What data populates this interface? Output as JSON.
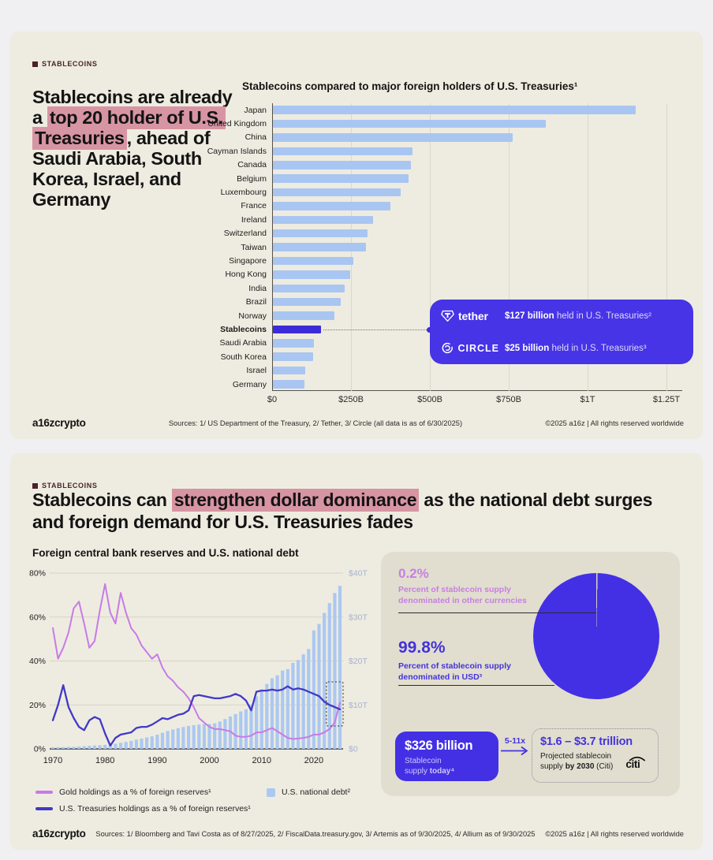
{
  "slide1": {
    "tag": "STABLECOINS",
    "headline": {
      "pre": "Stablecoins are already a ",
      "mark": "top 20 holder of U.S. Treasuries",
      "post": ", ahead of Saudi Arabia, South Korea, Israel, and Germany"
    },
    "callout": {
      "tether_name": "tether",
      "tether_value": "$127 billion",
      "tether_rest": " held in U.S. Treasuries²",
      "circle_name": "CIRCLE",
      "circle_value": "$25 billion",
      "circle_rest": " held in U.S. Treasuries³"
    },
    "footer": {
      "logo": "a16zcrypto",
      "sources": "Sources: 1/ US Department of the Treasury, 2/ Tether, 3/ Circle (all data is as of 6/30/2025)",
      "copyright": "©2025 a16z | All rights reserved worldwide"
    }
  },
  "slide2": {
    "tag": "STABLECOINS",
    "headline": {
      "pre": "Stablecoins can ",
      "mark": "strengthen dollar dominance",
      "post": " as the national debt surges and foreign demand for U.S. Treasuries fades"
    },
    "subtitle": "Foreign central bank reserves and U.S. national debt",
    "pie_panel": {
      "other_pct": "0.2%",
      "other_label": "Percent of stablecoin supply denominated in other currencies",
      "usd_pct": "99.8%",
      "usd_label": "Percent of stablecoin supply denominated in USD³"
    },
    "supply_box": {
      "value": "$326 billion",
      "label_line1": "Stablecoin",
      "label_line2_pre": "supply ",
      "label_line2_bold": "today⁴"
    },
    "arrow_label": "5-11x",
    "projection_box": {
      "value": "$1.6 – $3.7 trillion",
      "sub_pre": "Projected stablecoin supply ",
      "sub_bold": "by 2030",
      "sub_post": " (Citi)",
      "brand": "citi"
    },
    "footer": {
      "logo": "a16zcrypto",
      "sources": "Sources: 1/ Bloomberg and Tavi Costa as of 8/27/2025, 2/ FiscalData.treasury.gov, 3/ Artemis as of 9/30/2025, 4/ Allium as of 9/30/2025",
      "copyright": "©2025 a16z | All rights reserved worldwide"
    }
  },
  "chart_data": [
    {
      "type": "bar",
      "orientation": "horizontal",
      "title": "Stablecoins compared to major foreign holders of U.S. Treasuries¹",
      "unit": "billions of USD",
      "categories": [
        "Japan",
        "United Kingdom",
        "China",
        "Cayman Islands",
        "Canada",
        "Belgium",
        "Luxembourg",
        "France",
        "Ireland",
        "Switzerland",
        "Taiwan",
        "Singapore",
        "Hong Kong",
        "India",
        "Brazil",
        "Norway",
        "Stablecoins",
        "Saudi Arabia",
        "South Korea",
        "Israel",
        "Germany"
      ],
      "values": [
        1150,
        865,
        760,
        443,
        438,
        430,
        405,
        373,
        317,
        300,
        295,
        256,
        245,
        227,
        215,
        195,
        152,
        130,
        127,
        102,
        100
      ],
      "highlight_category": "Stablecoins",
      "xtick_labels": [
        "$0",
        "$250B",
        "$500B",
        "$750B",
        "$1T",
        "$1.25T"
      ],
      "xtick_values": [
        0,
        250,
        500,
        750,
        1000,
        1250
      ],
      "xlim": [
        0,
        1300
      ],
      "bar_color": "#a9c6f2",
      "highlight_color": "#3c2bd9",
      "annotations": [
        "tether — $127 billion held in U.S. Treasuries²",
        "CIRCLE — $25 billion held in U.S. Treasuries³"
      ]
    },
    {
      "type": "line+bar",
      "title": "Foreign central bank reserves and U.S. national debt",
      "x": [
        1970,
        1971,
        1972,
        1973,
        1974,
        1975,
        1976,
        1977,
        1978,
        1979,
        1980,
        1981,
        1982,
        1983,
        1984,
        1985,
        1986,
        1987,
        1988,
        1989,
        1990,
        1991,
        1992,
        1993,
        1994,
        1995,
        1996,
        1997,
        1998,
        1999,
        2000,
        2001,
        2002,
        2003,
        2004,
        2005,
        2006,
        2007,
        2008,
        2009,
        2010,
        2011,
        2012,
        2013,
        2014,
        2015,
        2016,
        2017,
        2018,
        2019,
        2020,
        2021,
        2022,
        2023,
        2024,
        2025
      ],
      "series": [
        {
          "name": "Gold holdings as a % of foreign reserves¹",
          "axis": "left",
          "color": "#c87ae8",
          "kind": "line",
          "values": [
            55,
            41,
            46,
            53,
            64,
            67,
            57,
            46,
            49,
            63,
            75,
            62,
            57,
            71,
            62,
            55,
            52,
            47,
            44,
            41,
            43,
            37,
            33,
            31,
            28,
            26,
            23,
            19,
            14,
            12,
            10,
            9,
            9,
            8.5,
            8,
            6,
            5.5,
            5.5,
            6,
            7.5,
            7.5,
            8.5,
            9.5,
            8,
            6.5,
            5,
            4.5,
            4.7,
            5,
            5.5,
            6.5,
            6.5,
            7.5,
            9,
            12,
            21
          ]
        },
        {
          "name": "U.S. Treasuries holdings as a % of foreign reserves¹",
          "axis": "left",
          "color": "#4238c8",
          "kind": "line",
          "values": [
            13,
            20,
            29,
            19,
            14,
            10,
            8.5,
            13,
            14.5,
            13.5,
            7,
            1.5,
            5,
            6.5,
            7,
            7.5,
            9.5,
            10,
            10,
            11,
            12.5,
            14,
            13.5,
            14.5,
            15.5,
            16,
            17.5,
            24,
            24.5,
            24,
            23.5,
            23,
            23,
            23.5,
            24,
            25,
            24,
            22,
            17.5,
            26,
            26.5,
            26.5,
            27,
            26.5,
            27,
            28.5,
            27,
            27.5,
            27,
            26,
            25,
            24,
            21.5,
            20,
            19,
            18
          ]
        },
        {
          "name": "U.S. national debt²",
          "axis": "right",
          "color": "#abc8f2",
          "kind": "bar",
          "values": [
            0.37,
            0.4,
            0.43,
            0.46,
            0.47,
            0.53,
            0.62,
            0.7,
            0.77,
            0.83,
            0.91,
            1.0,
            1.14,
            1.38,
            1.57,
            1.82,
            2.12,
            2.35,
            2.6,
            2.86,
            3.23,
            3.67,
            4.06,
            4.41,
            4.69,
            4.97,
            5.22,
            5.41,
            5.53,
            5.66,
            5.67,
            5.81,
            6.23,
            6.78,
            7.38,
            7.93,
            8.51,
            9.01,
            10.02,
            11.91,
            13.56,
            14.79,
            16.07,
            16.74,
            17.82,
            18.15,
            19.57,
            20.24,
            21.52,
            22.72,
            26.95,
            28.43,
            30.93,
            33.17,
            35.46,
            37.1
          ]
        }
      ],
      "left_axis": {
        "ticks": [
          0,
          20,
          40,
          60,
          80
        ],
        "labels": [
          "0%",
          "20%",
          "40%",
          "60%",
          "80%"
        ],
        "lim": [
          0,
          80
        ]
      },
      "right_axis": {
        "ticks": [
          0,
          10,
          20,
          30,
          40
        ],
        "labels": [
          "$0",
          "$10T",
          "$20T",
          "$30T",
          "$40T"
        ],
        "lim": [
          0,
          40
        ]
      },
      "xtick_labels": [
        "1970",
        "1980",
        "1990",
        "2000",
        "2010",
        "2020"
      ],
      "xtick_values": [
        1970,
        1980,
        1990,
        2000,
        2010,
        2020
      ],
      "grid": true,
      "legend_position": "bottom",
      "highlight_box_years": [
        2022.4,
        2025.6
      ]
    },
    {
      "type": "pie",
      "labels": [
        "Percent of stablecoin supply denominated in USD³",
        "Percent of stablecoin supply denominated in other currencies"
      ],
      "values": [
        99.8,
        0.2
      ],
      "colors": [
        "#4330e4",
        "#d8d5c6"
      ]
    }
  ]
}
